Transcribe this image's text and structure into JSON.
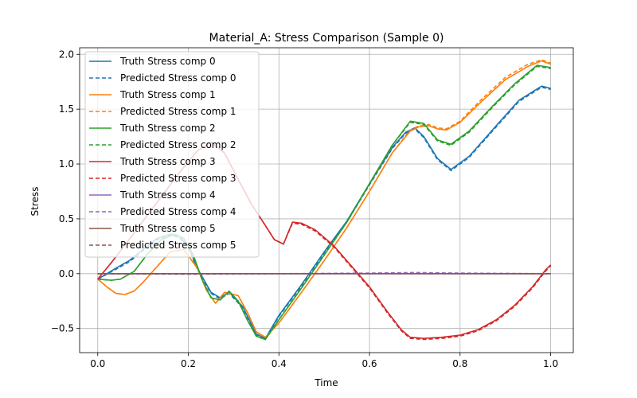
{
  "chart_data": {
    "type": "line",
    "title": "Material_A: Stress Comparison (Sample 0)",
    "xlabel": "Time",
    "ylabel": "Stress",
    "xlim": [
      -0.04,
      1.05
    ],
    "ylim": [
      -0.72,
      2.06
    ],
    "xticks": [
      0.0,
      0.2,
      0.4,
      0.6,
      0.8,
      1.0
    ],
    "xtick_labels": [
      "0.0",
      "0.2",
      "0.4",
      "0.6",
      "0.8",
      "1.0"
    ],
    "yticks": [
      -0.5,
      0.0,
      0.5,
      1.0,
      1.5,
      2.0
    ],
    "ytick_labels": [
      "−0.5",
      "0.0",
      "0.5",
      "1.0",
      "1.5",
      "2.0"
    ],
    "grid": true,
    "legend_position": "top-left",
    "series": [
      {
        "name": "Truth Stress comp 0",
        "color": "#1f77b4",
        "dash": false,
        "x": [
          0,
          0.04,
          0.07,
          0.1,
          0.13,
          0.16,
          0.18,
          0.2,
          0.22,
          0.25,
          0.27,
          0.29,
          0.32,
          0.35,
          0.37,
          0.4,
          0.45,
          0.5,
          0.55,
          0.6,
          0.65,
          0.68,
          0.7,
          0.72,
          0.75,
          0.78,
          0.82,
          0.88,
          0.93,
          0.98,
          1.0
        ],
        "y": [
          -0.05,
          0.05,
          0.12,
          0.22,
          0.32,
          0.36,
          0.34,
          0.25,
          0.05,
          -0.17,
          -0.22,
          -0.17,
          -0.3,
          -0.55,
          -0.59,
          -0.38,
          -0.1,
          0.2,
          0.48,
          0.82,
          1.15,
          1.29,
          1.33,
          1.25,
          1.05,
          0.95,
          1.07,
          1.35,
          1.58,
          1.71,
          1.69
        ]
      },
      {
        "name": "Predicted Stress comp 0",
        "color": "#1f77b4",
        "dash": true,
        "x": [
          0,
          0.04,
          0.07,
          0.1,
          0.13,
          0.16,
          0.18,
          0.2,
          0.22,
          0.25,
          0.27,
          0.29,
          0.32,
          0.35,
          0.37,
          0.4,
          0.45,
          0.5,
          0.55,
          0.6,
          0.65,
          0.68,
          0.7,
          0.72,
          0.75,
          0.78,
          0.82,
          0.88,
          0.93,
          0.98,
          1.0
        ],
        "y": [
          -0.05,
          0.04,
          0.11,
          0.21,
          0.31,
          0.35,
          0.33,
          0.24,
          0.04,
          -0.18,
          -0.23,
          -0.18,
          -0.31,
          -0.56,
          -0.6,
          -0.39,
          -0.11,
          0.19,
          0.47,
          0.81,
          1.14,
          1.28,
          1.32,
          1.24,
          1.04,
          0.94,
          1.06,
          1.34,
          1.57,
          1.7,
          1.68
        ]
      },
      {
        "name": "Truth Stress comp 1",
        "color": "#ff7f0e",
        "dash": false,
        "x": [
          0,
          0.02,
          0.04,
          0.06,
          0.08,
          0.1,
          0.13,
          0.16,
          0.19,
          0.22,
          0.24,
          0.26,
          0.28,
          0.31,
          0.33,
          0.35,
          0.37,
          0.4,
          0.45,
          0.5,
          0.55,
          0.6,
          0.65,
          0.69,
          0.71,
          0.73,
          0.75,
          0.77,
          0.8,
          0.85,
          0.9,
          0.95,
          0.98,
          1.0
        ],
        "y": [
          -0.05,
          -0.12,
          -0.18,
          -0.19,
          -0.16,
          -0.08,
          0.06,
          0.2,
          0.22,
          0.05,
          -0.15,
          -0.27,
          -0.17,
          -0.2,
          -0.35,
          -0.53,
          -0.58,
          -0.45,
          -0.17,
          0.12,
          0.42,
          0.75,
          1.1,
          1.3,
          1.34,
          1.35,
          1.32,
          1.31,
          1.38,
          1.58,
          1.77,
          1.89,
          1.94,
          1.91
        ]
      },
      {
        "name": "Predicted Stress comp 1",
        "color": "#ff7f0e",
        "dash": true,
        "x": [
          0,
          0.02,
          0.04,
          0.06,
          0.08,
          0.1,
          0.13,
          0.16,
          0.19,
          0.22,
          0.24,
          0.26,
          0.28,
          0.31,
          0.33,
          0.35,
          0.37,
          0.4,
          0.45,
          0.5,
          0.55,
          0.6,
          0.65,
          0.69,
          0.71,
          0.73,
          0.75,
          0.77,
          0.8,
          0.85,
          0.9,
          0.95,
          0.98,
          1.0
        ],
        "y": [
          -0.05,
          -0.12,
          -0.18,
          -0.19,
          -0.16,
          -0.08,
          0.06,
          0.2,
          0.22,
          0.05,
          -0.15,
          -0.27,
          -0.17,
          -0.2,
          -0.35,
          -0.53,
          -0.58,
          -0.45,
          -0.17,
          0.12,
          0.42,
          0.75,
          1.1,
          1.31,
          1.35,
          1.36,
          1.33,
          1.32,
          1.39,
          1.6,
          1.79,
          1.91,
          1.95,
          1.92
        ]
      },
      {
        "name": "Truth Stress comp 2",
        "color": "#2ca02c",
        "dash": false,
        "x": [
          0,
          0.03,
          0.05,
          0.08,
          0.11,
          0.14,
          0.17,
          0.19,
          0.21,
          0.23,
          0.25,
          0.27,
          0.29,
          0.31,
          0.33,
          0.35,
          0.37,
          0.4,
          0.45,
          0.5,
          0.55,
          0.6,
          0.65,
          0.69,
          0.72,
          0.75,
          0.78,
          0.82,
          0.87,
          0.92,
          0.97,
          1.0
        ],
        "y": [
          -0.05,
          -0.06,
          -0.05,
          0.02,
          0.18,
          0.31,
          0.36,
          0.32,
          0.18,
          -0.05,
          -0.22,
          -0.24,
          -0.16,
          -0.25,
          -0.42,
          -0.57,
          -0.6,
          -0.42,
          -0.13,
          0.17,
          0.47,
          0.82,
          1.17,
          1.39,
          1.37,
          1.22,
          1.18,
          1.3,
          1.52,
          1.73,
          1.9,
          1.88
        ]
      },
      {
        "name": "Predicted Stress comp 2",
        "color": "#2ca02c",
        "dash": true,
        "x": [
          0,
          0.03,
          0.05,
          0.08,
          0.11,
          0.14,
          0.17,
          0.19,
          0.21,
          0.23,
          0.25,
          0.27,
          0.29,
          0.31,
          0.33,
          0.35,
          0.37,
          0.4,
          0.45,
          0.5,
          0.55,
          0.6,
          0.65,
          0.69,
          0.72,
          0.75,
          0.78,
          0.82,
          0.87,
          0.92,
          0.97,
          1.0
        ],
        "y": [
          -0.05,
          -0.06,
          -0.05,
          0.02,
          0.18,
          0.31,
          0.36,
          0.32,
          0.18,
          -0.05,
          -0.22,
          -0.24,
          -0.16,
          -0.25,
          -0.42,
          -0.57,
          -0.6,
          -0.42,
          -0.13,
          0.17,
          0.47,
          0.82,
          1.17,
          1.38,
          1.36,
          1.21,
          1.17,
          1.29,
          1.51,
          1.72,
          1.89,
          1.87
        ]
      },
      {
        "name": "Truth Stress comp 3",
        "color": "#d62728",
        "dash": false,
        "x": [
          0,
          0.03,
          0.06,
          0.1,
          0.14,
          0.18,
          0.22,
          0.25,
          0.28,
          0.31,
          0.34,
          0.37,
          0.39,
          0.41,
          0.43,
          0.45,
          0.48,
          0.52,
          0.56,
          0.6,
          0.64,
          0.67,
          0.69,
          0.72,
          0.76,
          0.8,
          0.84,
          0.88,
          0.92,
          0.96,
          0.99,
          1.0
        ],
        "y": [
          -0.05,
          0.1,
          0.26,
          0.48,
          0.7,
          0.92,
          1.12,
          1.2,
          1.1,
          0.86,
          0.63,
          0.44,
          0.31,
          0.27,
          0.47,
          0.46,
          0.4,
          0.26,
          0.07,
          -0.12,
          -0.35,
          -0.51,
          -0.58,
          -0.59,
          -0.58,
          -0.56,
          -0.51,
          -0.42,
          -0.29,
          -0.12,
          0.04,
          0.08
        ]
      },
      {
        "name": "Predicted Stress comp 3",
        "color": "#d62728",
        "dash": true,
        "x": [
          0,
          0.03,
          0.06,
          0.1,
          0.14,
          0.18,
          0.22,
          0.25,
          0.28,
          0.31,
          0.34,
          0.37,
          0.39,
          0.41,
          0.43,
          0.45,
          0.48,
          0.52,
          0.56,
          0.6,
          0.64,
          0.67,
          0.69,
          0.72,
          0.76,
          0.8,
          0.84,
          0.88,
          0.92,
          0.96,
          0.99,
          1.0
        ],
        "y": [
          -0.05,
          0.1,
          0.26,
          0.48,
          0.7,
          0.92,
          1.12,
          1.2,
          1.1,
          0.86,
          0.63,
          0.44,
          0.31,
          0.27,
          0.46,
          0.45,
          0.39,
          0.25,
          0.06,
          -0.13,
          -0.36,
          -0.52,
          -0.59,
          -0.6,
          -0.59,
          -0.57,
          -0.52,
          -0.43,
          -0.3,
          -0.13,
          0.03,
          0.07
        ]
      },
      {
        "name": "Truth Stress comp 4",
        "color": "#9467bd",
        "dash": false,
        "x": [
          0,
          0.2,
          0.4,
          0.6,
          0.7,
          0.8,
          1.0
        ],
        "y": [
          0.0,
          0.0,
          0.0,
          0.0,
          0.0,
          0.0,
          0.0
        ]
      },
      {
        "name": "Predicted Stress comp 4",
        "color": "#9467bd",
        "dash": true,
        "x": [
          0,
          0.2,
          0.4,
          0.6,
          0.7,
          0.8,
          1.0
        ],
        "y": [
          0.0,
          -0.005,
          0.0,
          0.005,
          0.01,
          0.005,
          0.0
        ]
      },
      {
        "name": "Truth Stress comp 5",
        "color": "#8c564b",
        "dash": false,
        "x": [
          0,
          0.2,
          0.4,
          0.6,
          0.8,
          1.0
        ],
        "y": [
          0.0,
          0.0,
          0.0,
          0.0,
          0.0,
          0.0
        ]
      },
      {
        "name": "Predicted Stress comp 5",
        "color": "#8c564b",
        "dash": true,
        "x": [
          0,
          0.2,
          0.4,
          0.6,
          0.8,
          1.0
        ],
        "y": [
          0.0,
          0.0,
          0.0,
          0.0,
          0.0,
          0.0
        ]
      }
    ]
  }
}
